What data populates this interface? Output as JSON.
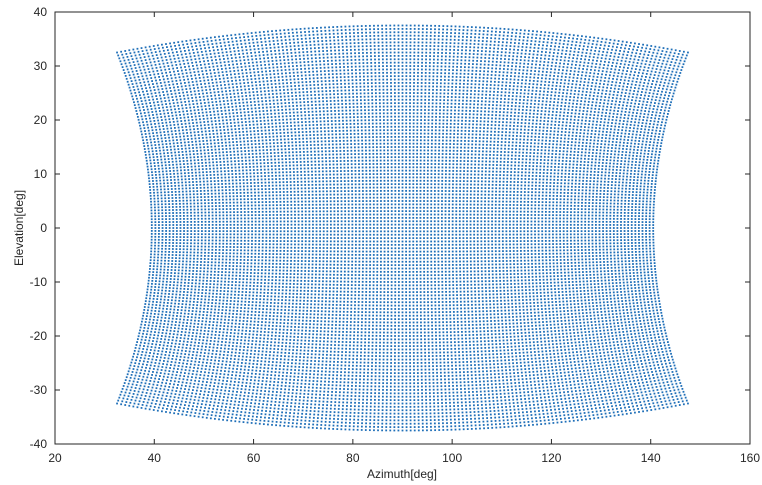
{
  "chart_data": {
    "type": "scatter",
    "title": "",
    "xlabel": "Azimuth[deg]",
    "ylabel": "Elevation[deg]",
    "xlim": [
      20,
      160
    ],
    "ylim": [
      -40,
      40
    ],
    "xticks": [
      20,
      40,
      60,
      80,
      100,
      120,
      140,
      160
    ],
    "yticks": [
      -40,
      -30,
      -20,
      -10,
      0,
      10,
      20,
      30,
      40
    ],
    "grid": false,
    "legend": "none",
    "marker_color": "#1f6fb8",
    "series": [
      {
        "description_of_pattern": "dense grid of points filling region bounded by corner points",
        "corners": {
          "top_left": [
            32.5,
            32.5
          ],
          "top_center": [
            90,
            37.5
          ],
          "top_right": [
            147.5,
            32.5
          ],
          "middle_left": [
            39.5,
            0
          ],
          "middle_right": [
            140.5,
            0
          ],
          "bottom_left": [
            32.5,
            -32.5
          ],
          "bottom_center": [
            90,
            -37.5
          ],
          "bottom_right": [
            147.5,
            -32.5
          ]
        },
        "grid_rows": 120,
        "grid_cols": 140
      }
    ]
  }
}
